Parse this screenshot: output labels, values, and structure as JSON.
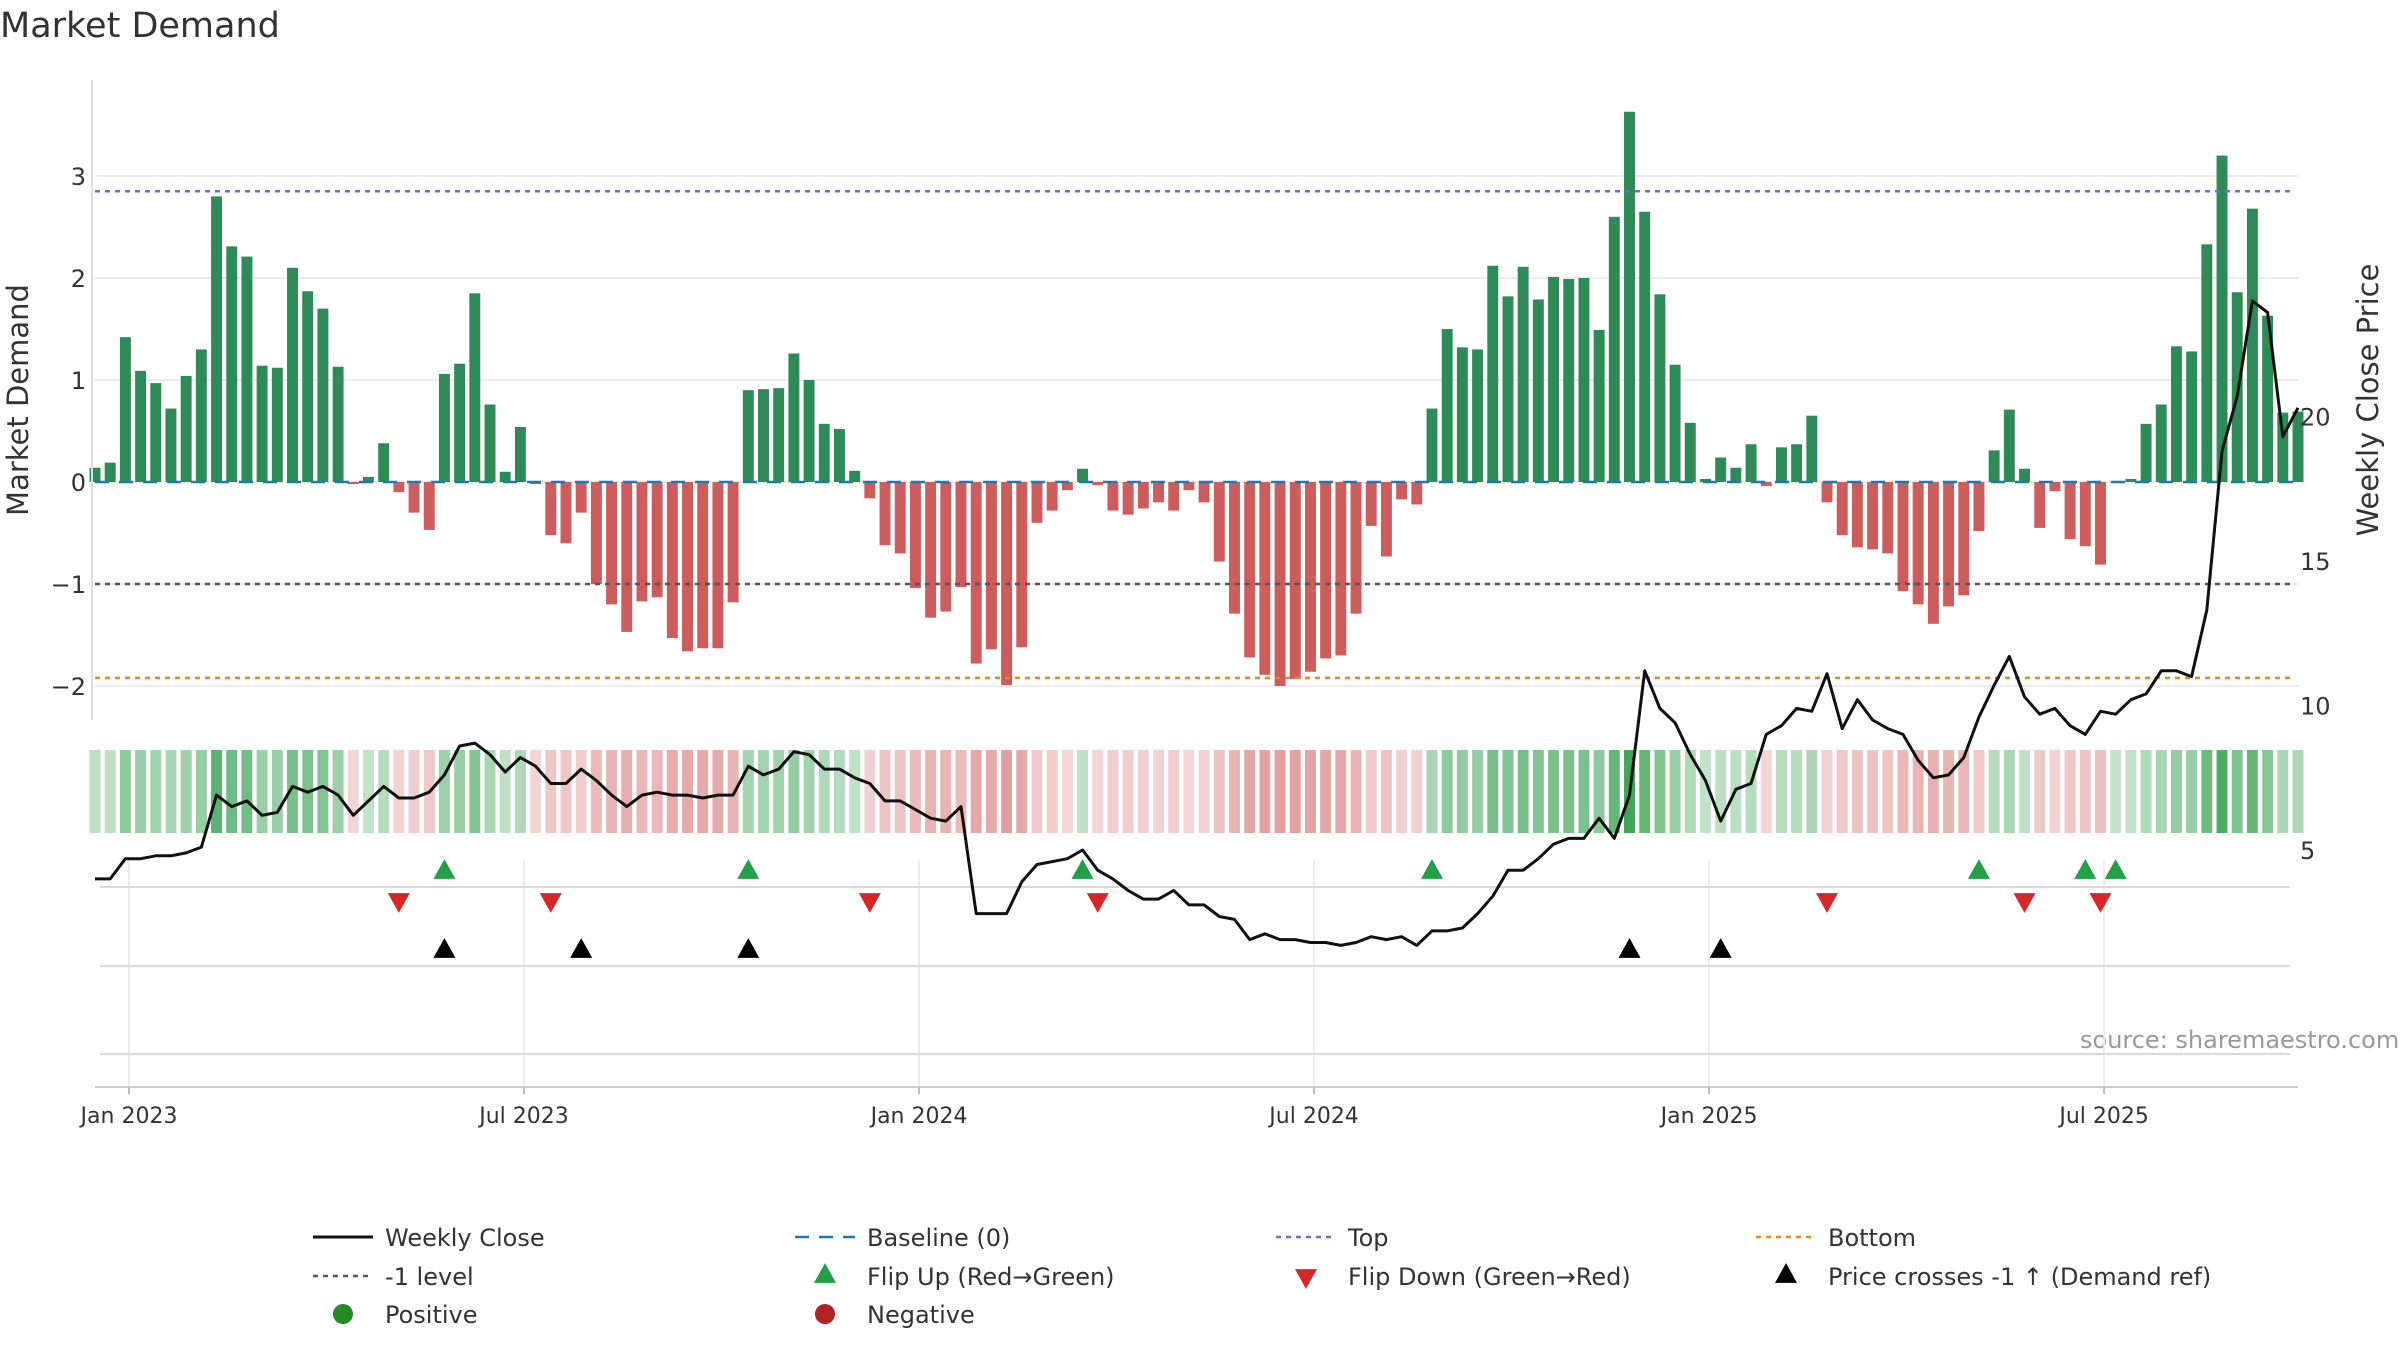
{
  "chart_data": {
    "type": "bar",
    "title": "Market Demand",
    "ylabel_left": "Market Demand",
    "ylabel_right": "Weekly Close Price",
    "source_text": "source: sharemaestro.com",
    "ylim_left": [
      -2.3,
      3.9
    ],
    "ylim_right": [
      3,
      25
    ],
    "yticks_left": [
      "3",
      "2",
      "1",
      "0",
      "−1",
      "−2"
    ],
    "yticks_left_values": [
      3,
      2,
      1,
      0,
      -1,
      -2
    ],
    "yticks_right": [
      "20",
      "15",
      "10",
      "5"
    ],
    "yticks_right_values": [
      20,
      15,
      10,
      5
    ],
    "x_ticks": [
      "Jan 2023",
      "Jul 2023",
      "Jan 2024",
      "Jul 2024",
      "Jan 2025",
      "Jul 2025"
    ],
    "x_ticks_week_index": [
      0,
      26,
      52,
      78,
      104,
      130
    ],
    "reference_lines": {
      "top": 2.85,
      "minus_one": -1.0,
      "bottom": -1.92,
      "baseline": 0
    },
    "colors": {
      "positive": "#2e8b57",
      "negative": "#cd5c5c",
      "price": "#111111",
      "top": "#7b68c8",
      "minus_one": "#555555",
      "bottom": "#e8891c",
      "baseline": "#1f77b4",
      "flip_up": "#22a045",
      "flip_down": "#d62728",
      "cross": "#000000",
      "legend_positive": "#228b22",
      "legend_negative": "#b22222"
    },
    "demand": [
      0.14,
      0.19,
      1.42,
      1.09,
      0.97,
      0.72,
      1.04,
      1.3,
      2.8,
      2.31,
      2.21,
      1.14,
      1.12,
      2.1,
      1.87,
      1.7,
      1.13,
      -0.02,
      0.05,
      0.38,
      -0.1,
      -0.3,
      -0.47,
      1.06,
      1.16,
      1.85,
      0.76,
      0.1,
      0.54,
      -0.02,
      -0.52,
      -0.6,
      -0.3,
      -1.0,
      -1.2,
      -1.47,
      -1.17,
      -1.13,
      -1.53,
      -1.66,
      -1.63,
      -1.63,
      -1.18,
      0.9,
      0.91,
      0.92,
      1.26,
      1.0,
      0.57,
      0.52,
      0.11,
      -0.16,
      -0.62,
      -0.7,
      -1.04,
      -1.33,
      -1.27,
      -1.03,
      -1.78,
      -1.64,
      -1.99,
      -1.62,
      -0.4,
      -0.28,
      -0.08,
      0.13,
      -0.03,
      -0.28,
      -0.32,
      -0.26,
      -0.2,
      -0.28,
      -0.08,
      -0.2,
      -0.78,
      -1.29,
      -1.72,
      -1.89,
      -2.0,
      -1.93,
      -1.86,
      -1.73,
      -1.7,
      -1.29,
      -0.43,
      -0.73,
      -0.17,
      -0.22,
      0.72,
      1.5,
      1.32,
      1.3,
      2.12,
      1.82,
      2.11,
      1.79,
      2.01,
      1.99,
      2.0,
      1.49,
      2.6,
      3.63,
      2.65,
      1.84,
      1.15,
      0.58,
      0.03,
      0.24,
      0.14,
      0.37,
      -0.04,
      0.34,
      0.37,
      0.65,
      -0.2,
      -0.52,
      -0.64,
      -0.66,
      -0.7,
      -1.07,
      -1.2,
      -1.39,
      -1.22,
      -1.11,
      -0.48,
      0.31,
      0.71,
      0.13,
      -0.45,
      -0.09,
      -0.56,
      -0.63,
      -0.81,
      0.0,
      0.03,
      0.57,
      0.76,
      1.33,
      1.28,
      2.33,
      3.2,
      1.86,
      2.68,
      1.63,
      0.68,
      0.69
    ],
    "weekly_close": [
      4.0,
      4.0,
      4.7,
      4.7,
      4.8,
      4.8,
      4.9,
      5.1,
      6.9,
      6.5,
      6.7,
      6.2,
      6.3,
      7.2,
      7.0,
      7.2,
      6.9,
      6.2,
      6.7,
      7.2,
      6.8,
      6.8,
      7.0,
      7.6,
      8.6,
      8.7,
      8.3,
      7.7,
      8.2,
      7.9,
      7.3,
      7.3,
      7.8,
      7.4,
      6.9,
      6.5,
      6.9,
      7.0,
      6.9,
      6.9,
      6.8,
      6.9,
      6.9,
      7.9,
      7.6,
      7.8,
      8.4,
      8.3,
      7.8,
      7.8,
      7.5,
      7.3,
      6.7,
      6.7,
      6.4,
      6.1,
      6.0,
      6.5,
      2.8,
      2.8,
      2.8,
      3.9,
      4.5,
      4.6,
      4.7,
      5.0,
      4.3,
      4.0,
      3.6,
      3.3,
      3.3,
      3.6,
      3.1,
      3.1,
      2.7,
      2.6,
      1.9,
      2.1,
      1.9,
      1.9,
      1.8,
      1.8,
      1.7,
      1.8,
      2.0,
      1.9,
      2.0,
      1.7,
      2.2,
      2.2,
      2.3,
      2.8,
      3.4,
      4.3,
      4.3,
      4.7,
      5.2,
      5.4,
      5.4,
      6.1,
      5.4,
      6.9,
      11.2,
      9.9,
      9.4,
      8.3,
      7.4,
      6.0,
      7.1,
      7.3,
      9.0,
      9.3,
      9.9,
      9.8,
      11.1,
      9.2,
      10.2,
      9.5,
      9.2,
      9.0,
      8.1,
      7.5,
      7.6,
      8.2,
      9.6,
      10.7,
      11.7,
      10.3,
      9.7,
      9.9,
      9.3,
      9.0,
      9.8,
      9.7,
      10.2,
      10.4,
      11.2,
      11.2,
      11.0,
      13.3,
      18.8,
      20.7,
      24.0,
      23.6,
      19.3,
      20.3
    ],
    "flip_up": [
      23,
      43,
      65,
      88,
      124,
      131,
      133
    ],
    "flip_down": [
      20,
      30,
      51,
      66,
      114,
      127,
      132
    ],
    "price_cross_up_minus1": [
      23,
      32,
      43,
      101,
      107
    ],
    "legend": [
      {
        "label": "Weekly Close",
        "symbol": "line"
      },
      {
        "label": "Baseline (0)",
        "symbol": "dash"
      },
      {
        "label": "Top",
        "symbol": "dots-top"
      },
      {
        "label": "Bottom",
        "symbol": "dots-bottom"
      },
      {
        "label": "-1 level",
        "symbol": "dots-minus1"
      },
      {
        "label": "Flip Up (Red→Green)",
        "symbol": "tri-up-green"
      },
      {
        "label": "Flip Down (Green→Red)",
        "symbol": "tri-down-red"
      },
      {
        "label": "Price crosses -1 ↑ (Demand ref)",
        "symbol": "tri-up-black"
      },
      {
        "label": "Positive",
        "symbol": "circle-green"
      },
      {
        "label": "Negative",
        "symbol": "circle-red"
      }
    ]
  }
}
